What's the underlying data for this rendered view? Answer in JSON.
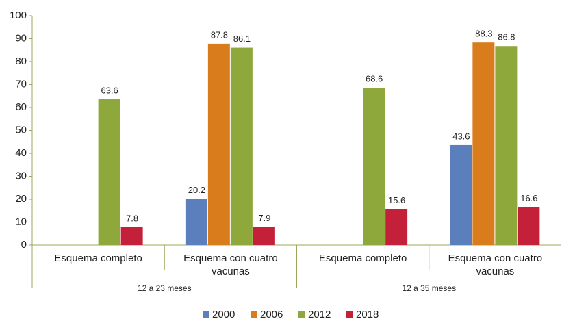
{
  "chart_data": {
    "type": "bar",
    "categories": [
      "Esquema completo",
      "Esquema con cuatro vacunas",
      "Esquema completo",
      "Esquema con cuatro vacunas"
    ],
    "group_labels": [
      "12 a 23 meses",
      "12 a 35 meses"
    ],
    "series": [
      {
        "name": "2000",
        "color": "#5b7fbd",
        "values": [
          null,
          20.2,
          null,
          43.6
        ]
      },
      {
        "name": "2006",
        "color": "#d97d1c",
        "values": [
          null,
          87.8,
          null,
          88.3
        ]
      },
      {
        "name": "2012",
        "color": "#8fa83b",
        "values": [
          63.6,
          86.1,
          68.6,
          86.8
        ]
      },
      {
        "name": "2018",
        "color": "#c4203a",
        "values": [
          7.8,
          7.9,
          15.6,
          16.6
        ]
      }
    ],
    "ylim": [
      0,
      100
    ],
    "yticks": [
      0,
      10,
      20,
      30,
      40,
      50,
      60,
      70,
      80,
      90,
      100
    ],
    "grid": false,
    "legend": "bottom"
  }
}
